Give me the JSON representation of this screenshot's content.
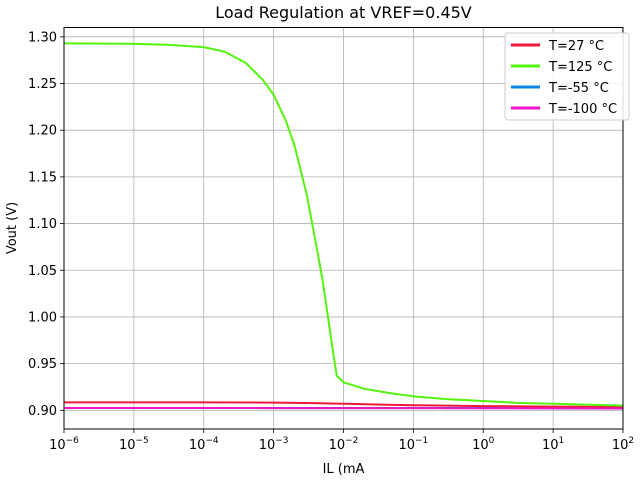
{
  "chart_data": {
    "type": "line",
    "title": "Load Regulation at VREF=0.45V",
    "xlabel": "IL (mA",
    "ylabel": "Vout (V)",
    "xscale": "log",
    "xlim": [
      1e-06,
      100
    ],
    "ylim": [
      0.88,
      1.31
    ],
    "grid": true,
    "legend_position": "top-right",
    "x_ticks": [
      {
        "value": 1e-06,
        "base": "10",
        "exp": "−6"
      },
      {
        "value": 1e-05,
        "base": "10",
        "exp": "−5"
      },
      {
        "value": 0.0001,
        "base": "10",
        "exp": "−4"
      },
      {
        "value": 0.001,
        "base": "10",
        "exp": "−3"
      },
      {
        "value": 0.01,
        "base": "10",
        "exp": "−2"
      },
      {
        "value": 0.1,
        "base": "10",
        "exp": "−1"
      },
      {
        "value": 1,
        "base": "10",
        "exp": "0"
      },
      {
        "value": 10,
        "base": "10",
        "exp": "1"
      },
      {
        "value": 100,
        "base": "10",
        "exp": "2"
      }
    ],
    "y_ticks": [
      {
        "value": 0.9,
        "label": "0.90"
      },
      {
        "value": 0.95,
        "label": "0.95"
      },
      {
        "value": 1.0,
        "label": "1.00"
      },
      {
        "value": 1.05,
        "label": "1.05"
      },
      {
        "value": 1.1,
        "label": "1.10"
      },
      {
        "value": 1.15,
        "label": "1.15"
      },
      {
        "value": 1.2,
        "label": "1.20"
      },
      {
        "value": 1.25,
        "label": "1.25"
      },
      {
        "value": 1.3,
        "label": "1.30"
      }
    ],
    "series": [
      {
        "name": "T=-55 °C",
        "color": "#0a84e6",
        "x": [
          1e-06,
          1e-05,
          0.0001,
          0.001,
          0.01,
          0.1,
          1,
          10,
          100
        ],
        "y": [
          0.9025,
          0.9025,
          0.9025,
          0.9025,
          0.9025,
          0.9025,
          0.9025,
          0.9025,
          0.9025
        ]
      },
      {
        "name": "T=27 °C",
        "color": "#f0163c",
        "x": [
          1e-06,
          1e-05,
          0.0001,
          0.001,
          0.003,
          0.01,
          0.03,
          0.1,
          0.3,
          1,
          10,
          100
        ],
        "y": [
          0.9085,
          0.9085,
          0.9085,
          0.9083,
          0.9078,
          0.907,
          0.9062,
          0.9055,
          0.905,
          0.9045,
          0.904,
          0.9035
        ]
      },
      {
        "name": "T=125 °C",
        "color": "#55f40e",
        "x": [
          1e-06,
          1e-05,
          3e-05,
          0.0001,
          0.0002,
          0.0004,
          0.0007,
          0.001,
          0.0015,
          0.002,
          0.003,
          0.004,
          0.005,
          0.006,
          0.007,
          0.008,
          0.01,
          0.02,
          0.05,
          0.1,
          0.3,
          1,
          3,
          10,
          100
        ],
        "y": [
          1.293,
          1.2925,
          1.2915,
          1.289,
          1.284,
          1.272,
          1.254,
          1.238,
          1.21,
          1.183,
          1.13,
          1.08,
          1.04,
          1.0,
          0.965,
          0.937,
          0.93,
          0.923,
          0.918,
          0.915,
          0.912,
          0.91,
          0.908,
          0.907,
          0.905
        ]
      },
      {
        "name": "T=-100 °C",
        "color": "#f015c8",
        "x": [
          1e-06,
          1e-05,
          0.0001,
          0.001,
          0.01,
          0.1,
          1,
          10,
          100
        ],
        "y": [
          0.9025,
          0.9025,
          0.9025,
          0.9024,
          0.9024,
          0.9023,
          0.9022,
          0.9021,
          0.902
        ]
      }
    ],
    "legend_order": [
      "T=27 °C",
      "T=125 °C",
      "T=-55 °C",
      "T=-100 °C"
    ]
  }
}
